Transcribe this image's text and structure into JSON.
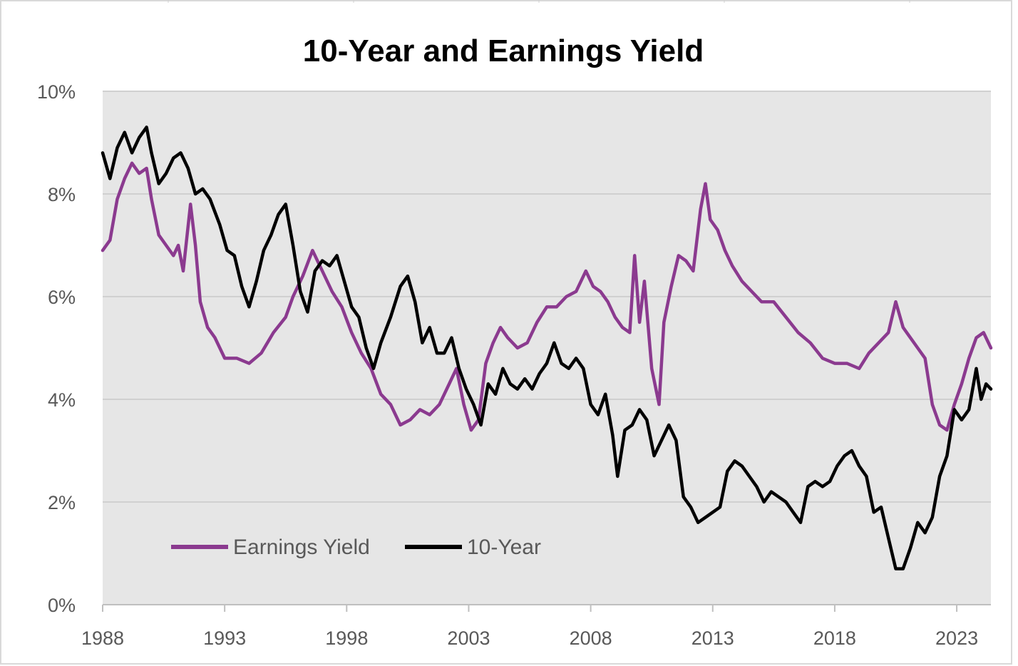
{
  "chart_data": {
    "type": "line",
    "title": "10-Year and Earnings Yield",
    "xlabel": "",
    "ylabel": "",
    "x_ticks": [
      1988,
      1993,
      1998,
      2003,
      2008,
      2013,
      2018,
      2023
    ],
    "x_tick_labels": [
      "1988",
      "1993",
      "1998",
      "2003",
      "2008",
      "2013",
      "2018",
      "2023"
    ],
    "xlim": [
      1988,
      2024.4
    ],
    "ylim": [
      0,
      10
    ],
    "y_ticks": [
      0,
      2,
      4,
      6,
      8,
      10
    ],
    "y_tick_labels": [
      "0%",
      "2%",
      "4%",
      "6%",
      "8%",
      "10%"
    ],
    "grid": true,
    "legend_position": "lower-left",
    "plot_background": "#e6e6e6",
    "series": [
      {
        "name": "Earnings Yield",
        "color": "#8b3a8f",
        "points": [
          [
            1988.0,
            6.9
          ],
          [
            1988.3,
            7.1
          ],
          [
            1988.6,
            7.9
          ],
          [
            1988.9,
            8.3
          ],
          [
            1989.2,
            8.6
          ],
          [
            1989.5,
            8.4
          ],
          [
            1989.8,
            8.5
          ],
          [
            1990.0,
            7.9
          ],
          [
            1990.3,
            7.2
          ],
          [
            1990.6,
            7.0
          ],
          [
            1990.9,
            6.8
          ],
          [
            1991.1,
            7.0
          ],
          [
            1991.3,
            6.5
          ],
          [
            1991.6,
            7.8
          ],
          [
            1991.8,
            7.0
          ],
          [
            1992.0,
            5.9
          ],
          [
            1992.3,
            5.4
          ],
          [
            1992.6,
            5.2
          ],
          [
            1993.0,
            4.8
          ],
          [
            1993.5,
            4.8
          ],
          [
            1994.0,
            4.7
          ],
          [
            1994.5,
            4.9
          ],
          [
            1995.0,
            5.3
          ],
          [
            1995.5,
            5.6
          ],
          [
            1995.8,
            6.0
          ],
          [
            1996.2,
            6.4
          ],
          [
            1996.6,
            6.9
          ],
          [
            1997.0,
            6.5
          ],
          [
            1997.4,
            6.1
          ],
          [
            1997.8,
            5.8
          ],
          [
            1998.2,
            5.3
          ],
          [
            1998.6,
            4.9
          ],
          [
            1999.0,
            4.6
          ],
          [
            1999.4,
            4.1
          ],
          [
            1999.8,
            3.9
          ],
          [
            2000.2,
            3.5
          ],
          [
            2000.6,
            3.6
          ],
          [
            2001.0,
            3.8
          ],
          [
            2001.4,
            3.7
          ],
          [
            2001.8,
            3.9
          ],
          [
            2002.2,
            4.3
          ],
          [
            2002.5,
            4.6
          ],
          [
            2002.8,
            3.9
          ],
          [
            2003.1,
            3.4
          ],
          [
            2003.4,
            3.6
          ],
          [
            2003.7,
            4.7
          ],
          [
            2004.0,
            5.1
          ],
          [
            2004.3,
            5.4
          ],
          [
            2004.6,
            5.2
          ],
          [
            2005.0,
            5.0
          ],
          [
            2005.4,
            5.1
          ],
          [
            2005.8,
            5.5
          ],
          [
            2006.2,
            5.8
          ],
          [
            2006.6,
            5.8
          ],
          [
            2007.0,
            6.0
          ],
          [
            2007.4,
            6.1
          ],
          [
            2007.8,
            6.5
          ],
          [
            2008.1,
            6.2
          ],
          [
            2008.4,
            6.1
          ],
          [
            2008.7,
            5.9
          ],
          [
            2009.0,
            5.6
          ],
          [
            2009.3,
            5.4
          ],
          [
            2009.6,
            5.3
          ],
          [
            2009.8,
            6.8
          ],
          [
            2010.0,
            5.5
          ],
          [
            2010.2,
            6.3
          ],
          [
            2010.5,
            4.6
          ],
          [
            2010.8,
            3.9
          ],
          [
            2011.0,
            5.5
          ],
          [
            2011.3,
            6.2
          ],
          [
            2011.6,
            6.8
          ],
          [
            2011.9,
            6.7
          ],
          [
            2012.2,
            6.5
          ],
          [
            2012.5,
            7.7
          ],
          [
            2012.7,
            8.2
          ],
          [
            2012.9,
            7.5
          ],
          [
            2013.2,
            7.3
          ],
          [
            2013.5,
            6.9
          ],
          [
            2013.8,
            6.6
          ],
          [
            2014.2,
            6.3
          ],
          [
            2014.6,
            6.1
          ],
          [
            2015.0,
            5.9
          ],
          [
            2015.5,
            5.9
          ],
          [
            2016.0,
            5.6
          ],
          [
            2016.5,
            5.3
          ],
          [
            2017.0,
            5.1
          ],
          [
            2017.5,
            4.8
          ],
          [
            2018.0,
            4.7
          ],
          [
            2018.5,
            4.7
          ],
          [
            2019.0,
            4.6
          ],
          [
            2019.4,
            4.9
          ],
          [
            2019.8,
            5.1
          ],
          [
            2020.2,
            5.3
          ],
          [
            2020.5,
            5.9
          ],
          [
            2020.8,
            5.4
          ],
          [
            2021.1,
            5.2
          ],
          [
            2021.4,
            5.0
          ],
          [
            2021.7,
            4.8
          ],
          [
            2022.0,
            3.9
          ],
          [
            2022.3,
            3.5
          ],
          [
            2022.6,
            3.4
          ],
          [
            2022.9,
            3.9
          ],
          [
            2023.2,
            4.3
          ],
          [
            2023.5,
            4.8
          ],
          [
            2023.8,
            5.2
          ],
          [
            2024.1,
            5.3
          ],
          [
            2024.4,
            5.0
          ]
        ]
      },
      {
        "name": "10-Year",
        "color": "#000000",
        "points": [
          [
            1988.0,
            8.8
          ],
          [
            1988.3,
            8.3
          ],
          [
            1988.6,
            8.9
          ],
          [
            1988.9,
            9.2
          ],
          [
            1989.2,
            8.8
          ],
          [
            1989.5,
            9.1
          ],
          [
            1989.8,
            9.3
          ],
          [
            1990.0,
            8.8
          ],
          [
            1990.3,
            8.2
          ],
          [
            1990.6,
            8.4
          ],
          [
            1990.9,
            8.7
          ],
          [
            1991.2,
            8.8
          ],
          [
            1991.5,
            8.5
          ],
          [
            1991.8,
            8.0
          ],
          [
            1992.1,
            8.1
          ],
          [
            1992.4,
            7.9
          ],
          [
            1992.8,
            7.4
          ],
          [
            1993.1,
            6.9
          ],
          [
            1993.4,
            6.8
          ],
          [
            1993.7,
            6.2
          ],
          [
            1994.0,
            5.8
          ],
          [
            1994.3,
            6.3
          ],
          [
            1994.6,
            6.9
          ],
          [
            1994.9,
            7.2
          ],
          [
            1995.2,
            7.6
          ],
          [
            1995.5,
            7.8
          ],
          [
            1995.8,
            7.0
          ],
          [
            1996.1,
            6.1
          ],
          [
            1996.4,
            5.7
          ],
          [
            1996.7,
            6.5
          ],
          [
            1997.0,
            6.7
          ],
          [
            1997.3,
            6.6
          ],
          [
            1997.6,
            6.8
          ],
          [
            1997.9,
            6.3
          ],
          [
            1998.2,
            5.8
          ],
          [
            1998.5,
            5.6
          ],
          [
            1998.8,
            5.0
          ],
          [
            1999.1,
            4.6
          ],
          [
            1999.4,
            5.1
          ],
          [
            1999.8,
            5.6
          ],
          [
            2000.2,
            6.2
          ],
          [
            2000.5,
            6.4
          ],
          [
            2000.8,
            5.9
          ],
          [
            2001.1,
            5.1
          ],
          [
            2001.4,
            5.4
          ],
          [
            2001.7,
            4.9
          ],
          [
            2002.0,
            4.9
          ],
          [
            2002.3,
            5.2
          ],
          [
            2002.6,
            4.6
          ],
          [
            2002.9,
            4.2
          ],
          [
            2003.2,
            3.9
          ],
          [
            2003.5,
            3.5
          ],
          [
            2003.8,
            4.3
          ],
          [
            2004.1,
            4.1
          ],
          [
            2004.4,
            4.6
          ],
          [
            2004.7,
            4.3
          ],
          [
            2005.0,
            4.2
          ],
          [
            2005.3,
            4.4
          ],
          [
            2005.6,
            4.2
          ],
          [
            2005.9,
            4.5
          ],
          [
            2006.2,
            4.7
          ],
          [
            2006.5,
            5.1
          ],
          [
            2006.8,
            4.7
          ],
          [
            2007.1,
            4.6
          ],
          [
            2007.4,
            4.8
          ],
          [
            2007.7,
            4.6
          ],
          [
            2008.0,
            3.9
          ],
          [
            2008.3,
            3.7
          ],
          [
            2008.6,
            4.1
          ],
          [
            2008.9,
            3.3
          ],
          [
            2009.1,
            2.5
          ],
          [
            2009.4,
            3.4
          ],
          [
            2009.7,
            3.5
          ],
          [
            2010.0,
            3.8
          ],
          [
            2010.3,
            3.6
          ],
          [
            2010.6,
            2.9
          ],
          [
            2010.9,
            3.2
          ],
          [
            2011.2,
            3.5
          ],
          [
            2011.5,
            3.2
          ],
          [
            2011.8,
            2.1
          ],
          [
            2012.1,
            1.9
          ],
          [
            2012.4,
            1.6
          ],
          [
            2012.7,
            1.7
          ],
          [
            2013.0,
            1.8
          ],
          [
            2013.3,
            1.9
          ],
          [
            2013.6,
            2.6
          ],
          [
            2013.9,
            2.8
          ],
          [
            2014.2,
            2.7
          ],
          [
            2014.5,
            2.5
          ],
          [
            2014.8,
            2.3
          ],
          [
            2015.1,
            2.0
          ],
          [
            2015.4,
            2.2
          ],
          [
            2015.7,
            2.1
          ],
          [
            2016.0,
            2.0
          ],
          [
            2016.3,
            1.8
          ],
          [
            2016.6,
            1.6
          ],
          [
            2016.9,
            2.3
          ],
          [
            2017.2,
            2.4
          ],
          [
            2017.5,
            2.3
          ],
          [
            2017.8,
            2.4
          ],
          [
            2018.1,
            2.7
          ],
          [
            2018.4,
            2.9
          ],
          [
            2018.7,
            3.0
          ],
          [
            2019.0,
            2.7
          ],
          [
            2019.3,
            2.5
          ],
          [
            2019.6,
            1.8
          ],
          [
            2019.9,
            1.9
          ],
          [
            2020.2,
            1.3
          ],
          [
            2020.5,
            0.7
          ],
          [
            2020.8,
            0.7
          ],
          [
            2021.1,
            1.1
          ],
          [
            2021.4,
            1.6
          ],
          [
            2021.7,
            1.4
          ],
          [
            2022.0,
            1.7
          ],
          [
            2022.3,
            2.5
          ],
          [
            2022.6,
            2.9
          ],
          [
            2022.9,
            3.8
          ],
          [
            2023.2,
            3.6
          ],
          [
            2023.5,
            3.8
          ],
          [
            2023.8,
            4.6
          ],
          [
            2024.0,
            4.0
          ],
          [
            2024.2,
            4.3
          ],
          [
            2024.4,
            4.2
          ]
        ]
      }
    ]
  }
}
